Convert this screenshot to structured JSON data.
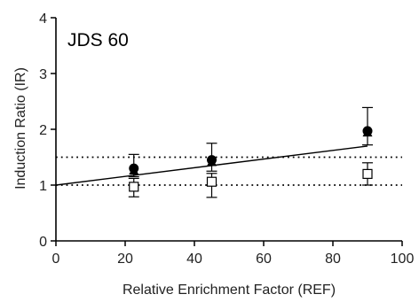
{
  "chart_data": {
    "type": "scatter",
    "title": "",
    "panel_label": "JDS 60",
    "xlabel": "Relative Enrichment Factor (REF)",
    "ylabel": "Induction Ratio (IR)",
    "xlim": [
      0,
      100
    ],
    "ylim": [
      0,
      4
    ],
    "xticks": [
      0,
      20,
      40,
      60,
      80,
      100
    ],
    "yticks": [
      0,
      1,
      2,
      3,
      4
    ],
    "grid": false,
    "legend": "none",
    "series": [
      {
        "marker": "filled-circle",
        "color": "#000000",
        "x": [
          22.5,
          45,
          90
        ],
        "y": [
          1.3,
          1.45,
          1.97
        ],
        "err_up": [
          0.25,
          0.3,
          0.42
        ],
        "err_down": [
          0.15,
          0.2,
          0.25
        ]
      },
      {
        "marker": "filled-triangle",
        "color": "#000000",
        "x": [
          22.5,
          45,
          90
        ],
        "y": [
          1.27,
          1.42,
          1.95
        ],
        "err_up": [
          0.0,
          0.0,
          0.0
        ],
        "err_down": [
          0.0,
          0.0,
          0.0
        ]
      },
      {
        "marker": "open-square",
        "color": "#000000",
        "x": [
          22.5,
          45,
          90
        ],
        "y": [
          0.97,
          1.06,
          1.2
        ],
        "err_up": [
          0.15,
          0.15,
          0.2
        ],
        "err_down": [
          0.18,
          0.28,
          0.2
        ]
      }
    ],
    "fit_line": {
      "x": [
        0,
        90
      ],
      "y": [
        1.0,
        1.7
      ],
      "color": "#000000"
    },
    "reference_lines": [
      {
        "y": 1.0,
        "style": "dotted"
      },
      {
        "y": 1.5,
        "style": "dotted"
      }
    ]
  }
}
